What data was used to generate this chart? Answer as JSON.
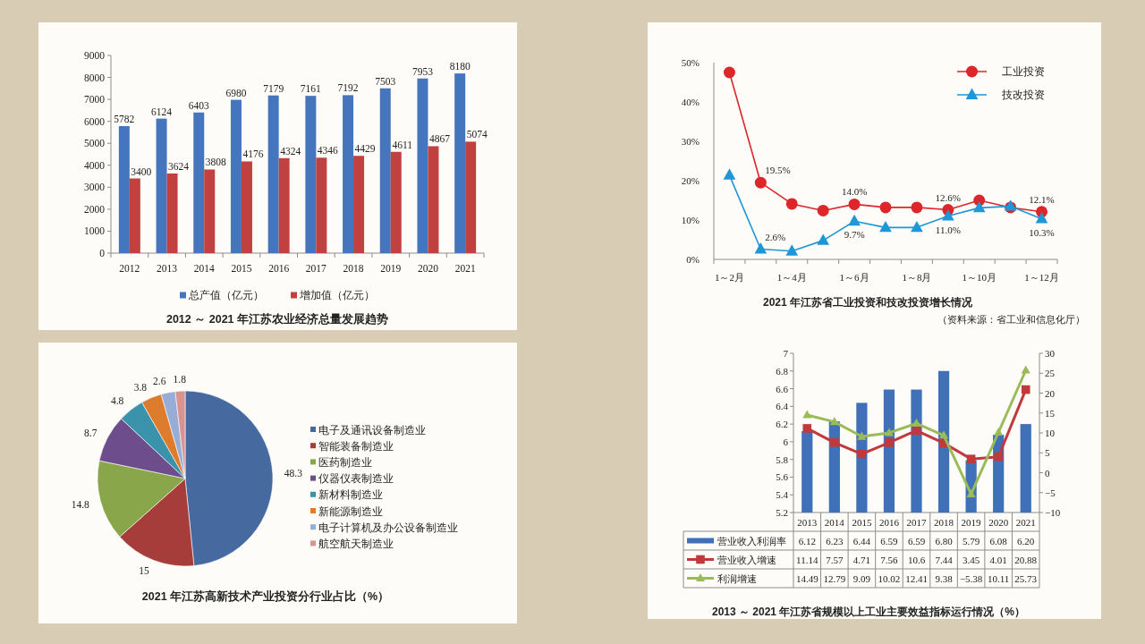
{
  "chart_data": [
    {
      "type": "bar",
      "title": "2012 ～ 2021 年江苏农业经济总量发展趋势",
      "categories": [
        "2012",
        "2013",
        "2014",
        "2015",
        "2016",
        "2017",
        "2018",
        "2019",
        "2020",
        "2021"
      ],
      "series": [
        {
          "name": "总产值（亿元）",
          "color": "#4576bd",
          "values": [
            5782,
            6124,
            6403,
            6980,
            7179,
            7161,
            7192,
            7503,
            7953,
            8180
          ]
        },
        {
          "name": "增加值（亿元）",
          "color": "#c0413f",
          "values": [
            3400,
            3624,
            3808,
            4176,
            4324,
            4346,
            4429,
            4611,
            4867,
            5074
          ]
        }
      ],
      "ylim": [
        0,
        9000
      ],
      "yticks": [
        0,
        1000,
        2000,
        3000,
        4000,
        5000,
        6000,
        7000,
        8000,
        9000
      ],
      "data_labels": true,
      "legend": "bottom"
    },
    {
      "type": "line",
      "title": "2021 年江苏省工业投资和技改投资增长情况",
      "categories": [
        "1～2月",
        null,
        "1～4月",
        null,
        "1～6月",
        null,
        "1～8月",
        null,
        "1～10月",
        null,
        "1～12月"
      ],
      "series": [
        {
          "name": "工业投资",
          "color": "#dc262a",
          "marker": "circle",
          "values": [
            47.5,
            19.5,
            14.1,
            12.4,
            14.0,
            13.2,
            13.2,
            12.6,
            15.0,
            13.2,
            12.1
          ],
          "value_labels": [
            null,
            "19.5%",
            null,
            null,
            "14.0%",
            null,
            null,
            "12.6%",
            null,
            null,
            "12.1%"
          ]
        },
        {
          "name": "技改投资",
          "color": "#1f96d6",
          "marker": "triangle",
          "values": [
            21.4,
            2.6,
            2.1,
            4.8,
            9.7,
            8.1,
            8.1,
            11.0,
            13.1,
            13.5,
            10.3
          ],
          "value_labels": [
            null,
            "2.6%",
            null,
            null,
            "9.7%",
            null,
            null,
            "11.0%",
            null,
            null,
            "10.3%"
          ]
        }
      ],
      "ylim": [
        0,
        50
      ],
      "yticks": [
        {
          "value": 0,
          "label": "0%"
        },
        {
          "value": 10,
          "label": "10%"
        },
        {
          "value": 20,
          "label": "20%"
        },
        {
          "value": 30,
          "label": "30%"
        },
        {
          "value": 40,
          "label": "40%"
        },
        {
          "value": 50,
          "label": "50%"
        }
      ],
      "legend": "top right",
      "annotations": [
        "（资料来源：省工业和信息化厅）"
      ]
    },
    {
      "type": "pie",
      "title": "2021 年江苏高新技术产业投资分行业占比（%）",
      "categories": [
        "电子及通讯设备制造业",
        "智能装备制造业",
        "医药制造业",
        "仪器仪表制造业",
        "新材料制造业",
        "新能源制造业",
        "电子计算机及办公设备制造业",
        "航空航天制造业"
      ],
      "values": [
        48.3,
        15,
        14.8,
        8.7,
        4.8,
        3.8,
        2.6,
        1.8
      ],
      "colors": [
        "#46699f",
        "#a73d3b",
        "#8aa64a",
        "#6d4d8c",
        "#3b93ab",
        "#dd7c2d",
        "#98add6",
        "#d89493"
      ],
      "data_labels": true,
      "legend": "right"
    },
    {
      "type": "bar",
      "title": "2013 ～ 2021 年江苏省规模以上工业主要效益指标运行情况（%）",
      "categories": [
        "2013",
        "2014",
        "2015",
        "2016",
        "2017",
        "2018",
        "2019",
        "2020",
        "2021"
      ],
      "series": [
        {
          "name": "营业收入利润率",
          "type": "bar",
          "color": "#3f70b8",
          "values": [
            6.12,
            6.23,
            6.44,
            6.59,
            6.59,
            6.8,
            5.79,
            6.08,
            6.2
          ],
          "value_labels": [
            "6.12",
            "6.23",
            "6.44",
            "6.59",
            "6.59",
            "6.80",
            "5.79",
            "6.08",
            "6.20"
          ]
        },
        {
          "name": "营业收入增速",
          "type": "line",
          "axis": "y2",
          "marker": "square",
          "color": "#c2393b",
          "values": [
            11.14,
            7.57,
            4.71,
            7.56,
            10.6,
            7.44,
            3.45,
            4.01,
            20.88
          ],
          "value_labels": [
            "11.14",
            "7.57",
            "4.71",
            "7.56",
            "10.6",
            "7.44",
            "3.45",
            "4.01",
            "20.88"
          ]
        },
        {
          "name": "利润增速",
          "type": "line",
          "axis": "y2",
          "marker": "triangle",
          "color": "#9bbb59",
          "values": [
            14.49,
            12.79,
            9.09,
            10.02,
            12.41,
            9.38,
            -5.38,
            10.11,
            25.73
          ],
          "value_labels": [
            "14.49",
            "12.79",
            "9.09",
            "10.02",
            "12.41",
            "9.38",
            "−5.38",
            "10.11",
            "25.73"
          ]
        }
      ],
      "ylim": [
        5.2,
        7
      ],
      "yticks": [
        5.2,
        5.4,
        5.6,
        5.8,
        6,
        6.2,
        6.4,
        6.6,
        6.8,
        7
      ],
      "y2lim": [
        -10,
        30
      ],
      "y2ticks": [
        {
          "value": -10,
          "label": "−10"
        },
        {
          "value": -5,
          "label": "−5"
        },
        0,
        5,
        10,
        15,
        20,
        25,
        30
      ],
      "legend": "bottom"
    }
  ]
}
